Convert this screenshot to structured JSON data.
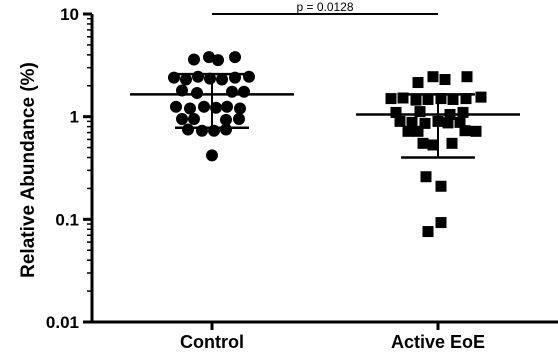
{
  "chart_data": {
    "type": "scatter",
    "yscale": "log",
    "ylim": [
      0.01,
      10
    ],
    "ylabel": "Relative Abundance (%)",
    "yticks": [
      {
        "value": 10,
        "label": "10"
      },
      {
        "value": 1,
        "label": "1"
      },
      {
        "value": 0.1,
        "label": "0.1"
      },
      {
        "value": 0.01,
        "label": "0.01"
      }
    ],
    "categories": [
      "Control",
      "Active EoE"
    ],
    "series": [
      {
        "category": "Control",
        "marker": "circle",
        "mean": 1.65,
        "upper": 2.6,
        "lower": 0.78,
        "points": [
          {
            "x": -0.03,
            "y": 3.8
          },
          {
            "x": -0.18,
            "y": 3.6
          },
          {
            "x": 0.23,
            "y": 3.8
          },
          {
            "x": 0.06,
            "y": 3.55
          },
          {
            "x": -0.38,
            "y": 2.4
          },
          {
            "x": -0.26,
            "y": 2.3
          },
          {
            "x": -0.14,
            "y": 2.45
          },
          {
            "x": -0.02,
            "y": 2.35
          },
          {
            "x": 0.1,
            "y": 2.3
          },
          {
            "x": 0.23,
            "y": 2.4
          },
          {
            "x": 0.37,
            "y": 2.45
          },
          {
            "x": -0.3,
            "y": 1.8
          },
          {
            "x": -0.15,
            "y": 1.7
          },
          {
            "x": 0.2,
            "y": 1.75
          },
          {
            "x": 0.32,
            "y": 1.75
          },
          {
            "x": -0.36,
            "y": 1.25
          },
          {
            "x": -0.22,
            "y": 1.2
          },
          {
            "x": -0.08,
            "y": 1.25
          },
          {
            "x": 0.04,
            "y": 1.22
          },
          {
            "x": 0.15,
            "y": 1.25
          },
          {
            "x": 0.28,
            "y": 1.2
          },
          {
            "x": -0.3,
            "y": 0.95
          },
          {
            "x": -0.18,
            "y": 0.95
          },
          {
            "x": 0.14,
            "y": 0.93
          },
          {
            "x": 0.27,
            "y": 0.95
          },
          {
            "x": -0.24,
            "y": 0.75
          },
          {
            "x": -0.1,
            "y": 0.73
          },
          {
            "x": 0.02,
            "y": 0.73
          },
          {
            "x": 0.14,
            "y": 0.75
          },
          {
            "x": 0.0,
            "y": 0.42
          }
        ]
      },
      {
        "category": "Active EoE",
        "marker": "square",
        "mean": 1.05,
        "upper": 1.65,
        "lower": 0.4,
        "points": [
          {
            "x": -0.05,
            "y": 2.45
          },
          {
            "x": 0.07,
            "y": 2.3
          },
          {
            "x": 0.29,
            "y": 2.45
          },
          {
            "x": -0.2,
            "y": 2.15
          },
          {
            "x": -0.47,
            "y": 1.5
          },
          {
            "x": -0.35,
            "y": 1.52
          },
          {
            "x": -0.22,
            "y": 1.45
          },
          {
            "x": -0.1,
            "y": 1.47
          },
          {
            "x": 0.03,
            "y": 1.5
          },
          {
            "x": 0.15,
            "y": 1.47
          },
          {
            "x": 0.28,
            "y": 1.5
          },
          {
            "x": 0.43,
            "y": 1.55
          },
          {
            "x": -0.42,
            "y": 1.1
          },
          {
            "x": -0.18,
            "y": 1.12
          },
          {
            "x": 0.12,
            "y": 1.05
          },
          {
            "x": 0.25,
            "y": 1.1
          },
          {
            "x": -0.38,
            "y": 0.9
          },
          {
            "x": -0.26,
            "y": 0.88
          },
          {
            "x": -0.13,
            "y": 0.86
          },
          {
            "x": 0.0,
            "y": 0.9
          },
          {
            "x": 0.1,
            "y": 0.87
          },
          {
            "x": 0.22,
            "y": 0.88
          },
          {
            "x": -0.3,
            "y": 0.72
          },
          {
            "x": -0.2,
            "y": 0.72
          },
          {
            "x": 0.27,
            "y": 0.73
          },
          {
            "x": 0.38,
            "y": 0.72
          },
          {
            "x": -0.05,
            "y": 0.53
          },
          {
            "x": 0.14,
            "y": 0.55
          },
          {
            "x": -0.15,
            "y": 0.55
          },
          {
            "x": -0.12,
            "y": 0.26
          },
          {
            "x": 0.03,
            "y": 0.21
          },
          {
            "x": 0.03,
            "y": 0.093
          },
          {
            "x": -0.1,
            "y": 0.076
          }
        ]
      }
    ],
    "annotations": [
      {
        "type": "significance-bar",
        "from": "Control",
        "to": "Active EoE",
        "label": "p = 0.0128",
        "y": 10
      }
    ],
    "grid": false,
    "legend": "none",
    "colors": {
      "marks": "#000000",
      "background": "#ffffff"
    }
  }
}
